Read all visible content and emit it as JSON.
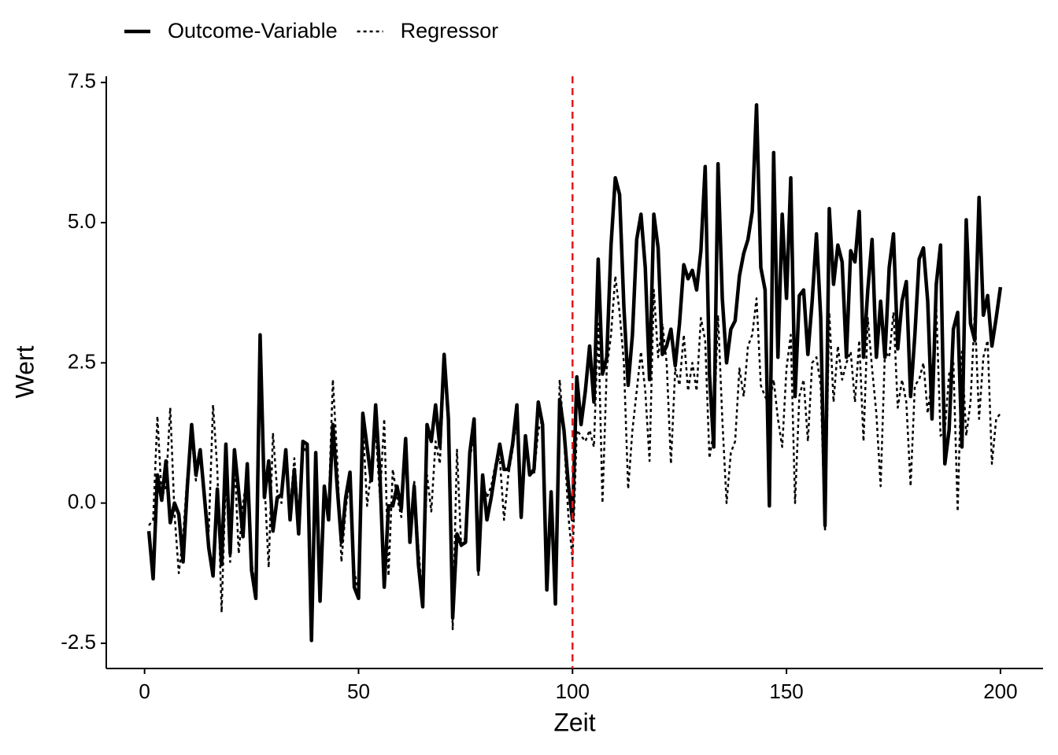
{
  "chart_data": {
    "type": "line",
    "x_label": "Zeit",
    "y_label": "Wert",
    "x": [
      1,
      2,
      3,
      4,
      5,
      6,
      7,
      8,
      9,
      10,
      11,
      12,
      13,
      14,
      15,
      16,
      17,
      18,
      19,
      20,
      21,
      22,
      23,
      24,
      25,
      26,
      27,
      28,
      29,
      30,
      31,
      32,
      33,
      34,
      35,
      36,
      37,
      38,
      39,
      40,
      41,
      42,
      43,
      44,
      45,
      46,
      47,
      48,
      49,
      50,
      51,
      52,
      53,
      54,
      55,
      56,
      57,
      58,
      59,
      60,
      61,
      62,
      63,
      64,
      65,
      66,
      67,
      68,
      69,
      70,
      71,
      72,
      73,
      74,
      75,
      76,
      77,
      78,
      79,
      80,
      81,
      82,
      83,
      84,
      85,
      86,
      87,
      88,
      89,
      90,
      91,
      92,
      93,
      94,
      95,
      96,
      97,
      98,
      99,
      100,
      101,
      102,
      103,
      104,
      105,
      106,
      107,
      108,
      109,
      110,
      111,
      112,
      113,
      114,
      115,
      116,
      117,
      118,
      119,
      120,
      121,
      122,
      123,
      124,
      125,
      126,
      127,
      128,
      129,
      130,
      131,
      132,
      133,
      134,
      135,
      136,
      137,
      138,
      139,
      140,
      141,
      142,
      143,
      144,
      145,
      146,
      147,
      148,
      149,
      150,
      151,
      152,
      153,
      154,
      155,
      156,
      157,
      158,
      159,
      160,
      161,
      162,
      163,
      164,
      165,
      166,
      167,
      168,
      169,
      170,
      171,
      172,
      173,
      174,
      175,
      176,
      177,
      178,
      179,
      180,
      181,
      182,
      183,
      184,
      185,
      186,
      187,
      188,
      189,
      190,
      191,
      192,
      193,
      194,
      195,
      196,
      197,
      198,
      199,
      200
    ],
    "series": [
      {
        "name": "Outcome-Variable",
        "color": "#000000",
        "style": "solid",
        "values": [
          -0.5,
          -1.35,
          0.5,
          0.05,
          0.75,
          -0.35,
          0.0,
          -0.2,
          -1.05,
          0.3,
          1.4,
          0.5,
          0.95,
          0.1,
          -0.8,
          -1.3,
          0.25,
          -1.1,
          1.05,
          -0.9,
          0.95,
          0.2,
          -0.6,
          0.7,
          -1.2,
          -1.7,
          3.0,
          0.1,
          0.75,
          -0.5,
          0.1,
          0.15,
          0.95,
          -0.3,
          0.6,
          -0.55,
          1.1,
          1.05,
          -2.45,
          0.9,
          -1.75,
          0.3,
          -0.3,
          1.4,
          0.3,
          -0.7,
          0.1,
          0.55,
          -1.5,
          -1.7,
          1.6,
          1.0,
          0.4,
          1.75,
          0.5,
          -1.5,
          -0.05,
          -0.05,
          0.3,
          -0.1,
          1.15,
          -0.7,
          0.3,
          -1.1,
          -1.85,
          1.4,
          1.1,
          1.75,
          1.0,
          2.65,
          1.5,
          -2.05,
          -0.55,
          -0.75,
          -0.7,
          0.9,
          1.5,
          -1.2,
          0.5,
          -0.3,
          0.1,
          0.6,
          1.05,
          0.6,
          0.6,
          1.05,
          1.75,
          -0.25,
          1.2,
          0.5,
          0.6,
          1.8,
          1.4,
          -1.55,
          0.2,
          -1.8,
          1.85,
          1.3,
          0.35,
          -0.3,
          2.25,
          1.4,
          2.0,
          2.8,
          1.8,
          4.35,
          2.3,
          2.6,
          4.6,
          5.8,
          5.5,
          3.5,
          2.1,
          3.0,
          4.7,
          5.15,
          4.2,
          2.2,
          5.15,
          4.55,
          2.65,
          2.8,
          3.1,
          2.45,
          3.2,
          4.25,
          4.0,
          4.15,
          3.8,
          4.5,
          6.0,
          2.3,
          1.0,
          6.05,
          3.65,
          2.5,
          3.1,
          3.25,
          4.05,
          4.45,
          4.7,
          5.2,
          7.1,
          4.2,
          3.8,
          -0.05,
          6.25,
          2.6,
          5.15,
          3.65,
          5.8,
          1.9,
          3.7,
          3.8,
          2.65,
          3.6,
          4.8,
          3.3,
          -0.4,
          5.25,
          3.9,
          4.6,
          4.3,
          2.6,
          4.5,
          4.3,
          5.2,
          2.6,
          3.8,
          4.7,
          2.6,
          3.6,
          2.6,
          4.2,
          4.8,
          2.75,
          3.6,
          3.95,
          1.9,
          3.0,
          4.35,
          4.55,
          3.6,
          1.5,
          3.9,
          4.6,
          0.7,
          1.3,
          3.1,
          3.4,
          1.0,
          5.05,
          3.2,
          2.9,
          5.45,
          3.35,
          3.7,
          2.8,
          3.3,
          3.85
        ]
      },
      {
        "name": "Regressor",
        "color": "#000000",
        "style": "dotted",
        "values": [
          -0.4,
          -0.3,
          1.55,
          0.1,
          0.3,
          1.7,
          -0.2,
          -1.25,
          -0.6,
          0.5,
          1.2,
          0.4,
          0.9,
          0.2,
          -0.5,
          1.75,
          0.6,
          -1.95,
          0.5,
          -1.05,
          0.8,
          -0.9,
          0.0,
          0.5,
          -1.05,
          -1.6,
          2.4,
          0.4,
          -1.15,
          1.25,
          0.2,
          0.0,
          0.9,
          -0.1,
          0.8,
          -0.3,
          1.0,
          0.9,
          -2.0,
          0.8,
          -1.5,
          0.1,
          -0.1,
          2.2,
          0.8,
          -1.05,
          -0.1,
          0.45,
          -1.2,
          -1.6,
          1.4,
          -0.05,
          0.6,
          1.3,
          0.1,
          1.5,
          -1.3,
          0.6,
          0.1,
          -0.25,
          1.0,
          -0.5,
          0.4,
          -0.8,
          -1.75,
          0.5,
          -0.15,
          1.1,
          0.7,
          2.4,
          1.7,
          -2.25,
          0.95,
          -0.8,
          -0.6,
          0.8,
          1.2,
          -1.3,
          0.4,
          0.1,
          0.3,
          0.7,
          0.8,
          -0.3,
          0.5,
          0.95,
          1.5,
          -0.3,
          1.1,
          0.6,
          0.5,
          1.3,
          1.5,
          -1.2,
          0.1,
          -1.6,
          2.2,
          1.2,
          -0.2,
          -1.0,
          1.3,
          1.2,
          1.1,
          1.3,
          1.0,
          3.2,
          0.0,
          2.4,
          3.0,
          4.05,
          3.4,
          2.5,
          0.25,
          1.3,
          2.0,
          2.7,
          2.0,
          0.75,
          3.8,
          2.6,
          3.2,
          2.5,
          0.7,
          2.4,
          2.1,
          3.0,
          2.0,
          2.5,
          2.0,
          3.3,
          2.9,
          0.8,
          1.3,
          3.35,
          1.5,
          0.0,
          0.9,
          1.1,
          2.4,
          1.9,
          2.8,
          3.0,
          3.65,
          2.1,
          1.9,
          1.75,
          2.2,
          1.5,
          1.0,
          2.4,
          3.0,
          0.0,
          1.9,
          2.2,
          1.1,
          2.5,
          2.6,
          2.1,
          -0.5,
          3.4,
          1.8,
          2.8,
          2.2,
          2.5,
          2.7,
          1.8,
          2.9,
          1.1,
          3.3,
          2.4,
          1.6,
          0.3,
          2.7,
          2.6,
          3.4,
          1.7,
          2.2,
          1.8,
          0.3,
          2.1,
          2.2,
          2.5,
          1.6,
          2.2,
          3.5,
          1.2,
          1.3,
          2.3,
          2.5,
          -0.15,
          2.7,
          1.2,
          1.8,
          3.4,
          1.5,
          2.6,
          2.9,
          0.7,
          1.5,
          1.6
        ]
      }
    ],
    "xlim": [
      -8.95,
      209.95
    ],
    "xticks": [
      0,
      50,
      100,
      150,
      200
    ],
    "ylim": [
      -2.95,
      7.61
    ],
    "yticks": [
      -2.5,
      {
        "value": 0,
        "label": "0.0"
      },
      2.5,
      {
        "value": 5,
        "label": "5.0"
      },
      7.5
    ],
    "vline": 100,
    "vline_color": "#e41a1c",
    "legend": "top-left",
    "grid": false
  }
}
